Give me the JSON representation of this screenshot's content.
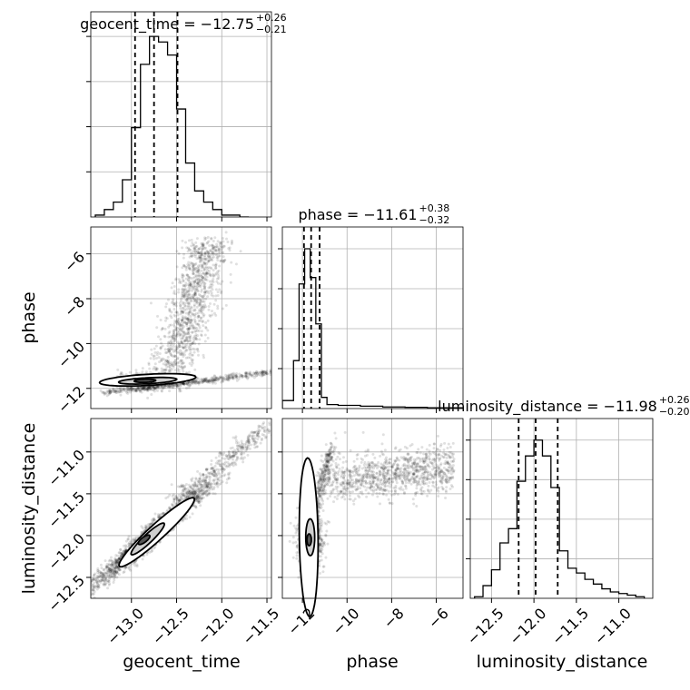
{
  "chart_data": {
    "type": "corner",
    "parameters": [
      "geocent_time",
      "phase",
      "luminosity_distance"
    ],
    "axis_labels": {
      "geocent_time": "geocent_time",
      "phase": "phase",
      "luminosity_distance": "luminosity_distance"
    },
    "ranges": {
      "geocent_time": [
        -13.45,
        -11.45
      ],
      "phase": [
        -12.9,
        -4.8
      ],
      "luminosity_distance": [
        -12.75,
        -10.6
      ]
    },
    "ticks": {
      "geocent_time": {
        "values": [
          -13.0,
          -12.5,
          -12.0,
          -11.5
        ],
        "labels": [
          "−13.0",
          "−12.5",
          "−12.0",
          "−11.5"
        ]
      },
      "phase": {
        "values": [
          -12,
          -10,
          -8,
          -6
        ],
        "labels": [
          "−12",
          "−10",
          "−8",
          "−6"
        ]
      },
      "luminosity_distance": {
        "values": [
          -12.5,
          -12.0,
          -11.5,
          -11.0
        ],
        "labels": [
          "−12.5",
          "−12.0",
          "−11.5",
          "−11.0"
        ]
      }
    },
    "titles": [
      {
        "param": "geocent_time",
        "text": "geocent_time = −12.75",
        "sup": "+0.26",
        "sub": "−0.21"
      },
      {
        "param": "phase",
        "text": "phase = −11.61",
        "sup": "+0.38",
        "sub": "−0.32"
      },
      {
        "param": "luminosity_distance",
        "text": "luminosity_distance = −11.98",
        "sup": "+0.26",
        "sub": "−0.20"
      }
    ],
    "quantiles": {
      "geocent_time": [
        -12.96,
        -12.75,
        -12.49
      ],
      "phase": [
        -11.93,
        -11.61,
        -11.23
      ],
      "luminosity_distance": [
        -12.18,
        -11.98,
        -11.72
      ]
    },
    "histograms": {
      "geocent_time": {
        "edges": [
          -13.4,
          -13.3,
          -13.2,
          -13.1,
          -13.0,
          -12.9,
          -12.8,
          -12.7,
          -12.6,
          -12.5,
          -12.4,
          -12.3,
          -12.2,
          -12.1,
          -12.0,
          -11.9,
          -11.8,
          -11.7
        ],
        "counts": [
          0.01,
          0.04,
          0.08,
          0.2,
          0.48,
          0.82,
          0.97,
          0.94,
          0.87,
          0.58,
          0.29,
          0.14,
          0.08,
          0.04,
          0.01,
          0.01,
          0
        ]
      },
      "phase": {
        "edges": [
          -12.9,
          -12.4,
          -12.15,
          -11.9,
          -11.65,
          -11.4,
          -11.15,
          -10.9,
          -10.4,
          -9.4,
          -8.4,
          -7.4,
          -6.4,
          -4.8
        ],
        "counts": [
          0.05,
          0.3,
          0.78,
          1.0,
          0.82,
          0.53,
          0.07,
          0.025,
          0.02,
          0.015,
          0.01,
          0.008,
          0.005
        ]
      },
      "luminosity_distance": {
        "edges": [
          -12.7,
          -12.6,
          -12.5,
          -12.4,
          -12.3,
          -12.2,
          -12.1,
          -12.0,
          -11.9,
          -11.8,
          -11.7,
          -11.6,
          -11.5,
          -11.4,
          -11.3,
          -11.2,
          -11.1,
          -11.0,
          -10.9,
          -10.8,
          -10.7
        ],
        "counts": [
          0.01,
          0.08,
          0.18,
          0.35,
          0.44,
          0.74,
          0.9,
          1.0,
          0.9,
          0.7,
          0.3,
          0.19,
          0.16,
          0.12,
          0.09,
          0.06,
          0.04,
          0.03,
          0.02,
          0.01
        ]
      }
    },
    "grid": true,
    "colors": {
      "lines": "#000000",
      "points": "#000000",
      "contour_fill_inner": "#555555",
      "contour_fill_outer": "#cfcfcf",
      "grid": "#b0b0b0"
    }
  }
}
